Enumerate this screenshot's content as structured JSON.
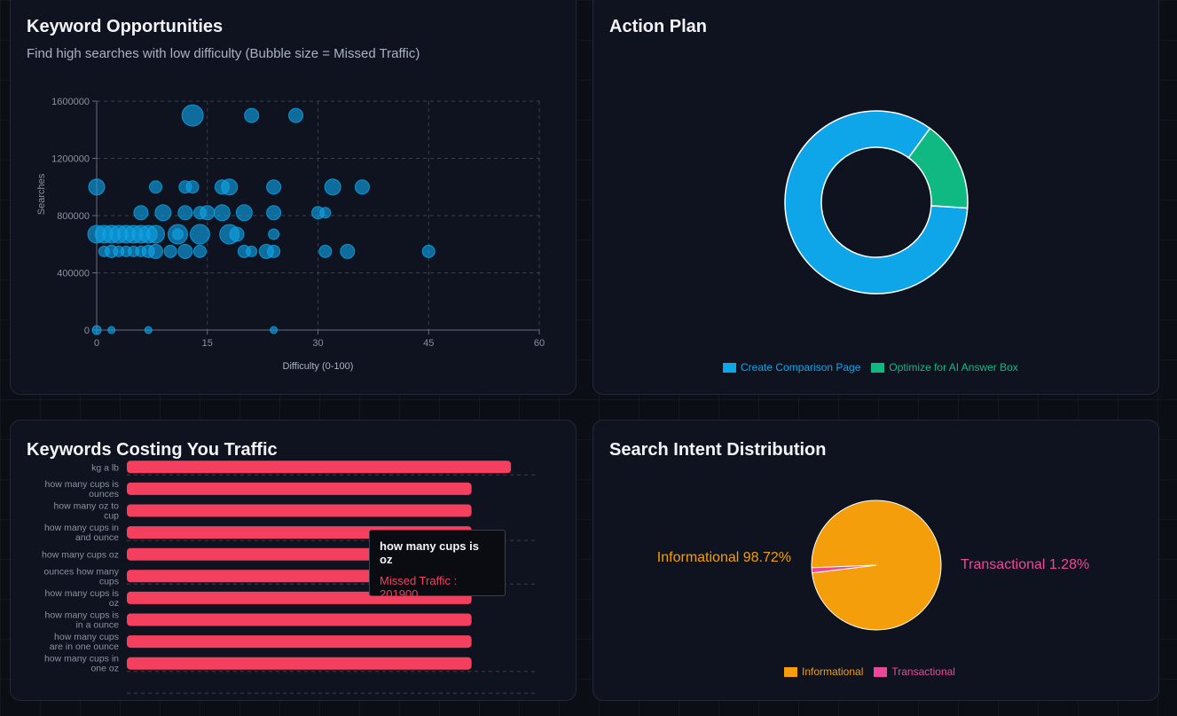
{
  "cards": {
    "opportunities": {
      "title": "Keyword Opportunities",
      "subtitle": "Find high searches with low difficulty (Bubble size = Missed Traffic)"
    },
    "action_plan": {
      "title": "Action Plan"
    },
    "costing": {
      "title": "Keywords Costing You Traffic"
    },
    "intent": {
      "title": "Search Intent Distribution"
    }
  },
  "colors": {
    "bubble": "#0ea5e9",
    "comparison": "#0ea5e9",
    "ai_answer": "#10b981",
    "bar": "#f43f5e",
    "informational": "#f59e0b",
    "transactional": "#ec4899"
  },
  "tooltip": {
    "title": "how many cups is oz",
    "label": "Missed Traffic : 201900"
  },
  "chart_data": [
    {
      "type": "scatter",
      "title": "Keyword Opportunities",
      "subtitle": "Find high searches with low difficulty (Bubble size = Missed Traffic)",
      "xlabel": "Difficulty (0-100)",
      "ylabel": "Searches",
      "xlim": [
        0,
        60
      ],
      "ylim": [
        0,
        1600000
      ],
      "x_ticks": [
        "0",
        "15",
        "30",
        "45",
        "60"
      ],
      "y_ticks": [
        "0",
        "400000",
        "800000",
        "1200000",
        "1600000"
      ],
      "grid": true,
      "points": [
        {
          "x": 13,
          "y": 1500000,
          "r": 12
        },
        {
          "x": 21,
          "y": 1500000,
          "r": 8
        },
        {
          "x": 27,
          "y": 1500000,
          "r": 8
        },
        {
          "x": 0,
          "y": 1000000,
          "r": 9
        },
        {
          "x": 8,
          "y": 1000000,
          "r": 7
        },
        {
          "x": 12,
          "y": 1000000,
          "r": 7
        },
        {
          "x": 13,
          "y": 1000000,
          "r": 7
        },
        {
          "x": 17,
          "y": 1000000,
          "r": 8
        },
        {
          "x": 18,
          "y": 1000000,
          "r": 9
        },
        {
          "x": 24,
          "y": 1000000,
          "r": 8
        },
        {
          "x": 32,
          "y": 1000000,
          "r": 9
        },
        {
          "x": 36,
          "y": 1000000,
          "r": 8
        },
        {
          "x": 6,
          "y": 820000,
          "r": 8
        },
        {
          "x": 9,
          "y": 820000,
          "r": 9
        },
        {
          "x": 12,
          "y": 820000,
          "r": 8
        },
        {
          "x": 14,
          "y": 820000,
          "r": 7
        },
        {
          "x": 15,
          "y": 820000,
          "r": 8
        },
        {
          "x": 17,
          "y": 820000,
          "r": 9
        },
        {
          "x": 20,
          "y": 820000,
          "r": 9
        },
        {
          "x": 24,
          "y": 820000,
          "r": 8
        },
        {
          "x": 30,
          "y": 820000,
          "r": 7
        },
        {
          "x": 31,
          "y": 820000,
          "r": 6
        },
        {
          "x": 0,
          "y": 670000,
          "r": 10
        },
        {
          "x": 1,
          "y": 670000,
          "r": 10
        },
        {
          "x": 2,
          "y": 670000,
          "r": 10
        },
        {
          "x": 3,
          "y": 670000,
          "r": 10
        },
        {
          "x": 4,
          "y": 670000,
          "r": 10
        },
        {
          "x": 5,
          "y": 670000,
          "r": 10
        },
        {
          "x": 6,
          "y": 670000,
          "r": 10
        },
        {
          "x": 7,
          "y": 670000,
          "r": 10
        },
        {
          "x": 8,
          "y": 670000,
          "r": 10
        },
        {
          "x": 11,
          "y": 670000,
          "r": 11
        },
        {
          "x": 11,
          "y": 670000,
          "r": 6
        },
        {
          "x": 14,
          "y": 670000,
          "r": 11
        },
        {
          "x": 18,
          "y": 670000,
          "r": 11
        },
        {
          "x": 19,
          "y": 670000,
          "r": 8
        },
        {
          "x": 24,
          "y": 670000,
          "r": 6
        },
        {
          "x": 1,
          "y": 550000,
          "r": 6
        },
        {
          "x": 2,
          "y": 550000,
          "r": 7
        },
        {
          "x": 3,
          "y": 550000,
          "r": 6
        },
        {
          "x": 4,
          "y": 550000,
          "r": 6
        },
        {
          "x": 5,
          "y": 550000,
          "r": 6
        },
        {
          "x": 6,
          "y": 550000,
          "r": 6
        },
        {
          "x": 7,
          "y": 550000,
          "r": 7
        },
        {
          "x": 8,
          "y": 550000,
          "r": 8
        },
        {
          "x": 10,
          "y": 550000,
          "r": 7
        },
        {
          "x": 12,
          "y": 550000,
          "r": 8
        },
        {
          "x": 14,
          "y": 550000,
          "r": 7
        },
        {
          "x": 20,
          "y": 550000,
          "r": 7
        },
        {
          "x": 21,
          "y": 550000,
          "r": 6
        },
        {
          "x": 23,
          "y": 550000,
          "r": 8
        },
        {
          "x": 24,
          "y": 550000,
          "r": 7
        },
        {
          "x": 31,
          "y": 550000,
          "r": 7
        },
        {
          "x": 34,
          "y": 550000,
          "r": 8
        },
        {
          "x": 45,
          "y": 550000,
          "r": 7
        },
        {
          "x": 0,
          "y": 0,
          "r": 5
        },
        {
          "x": 2,
          "y": 0,
          "r": 4
        },
        {
          "x": 7,
          "y": 0,
          "r": 4
        },
        {
          "x": 24,
          "y": 0,
          "r": 4
        }
      ]
    },
    {
      "type": "pie",
      "title": "Action Plan",
      "donut": true,
      "legend": "bottom",
      "slices": [
        {
          "name": "Create Comparison Page",
          "value": 84,
          "color": "#0ea5e9"
        },
        {
          "name": "Optimize for AI Answer Box",
          "value": 16,
          "color": "#10b981"
        }
      ]
    },
    {
      "type": "bar",
      "orientation": "horizontal",
      "title": "Keywords Costing You Traffic",
      "xlim": [
        0,
        240000
      ],
      "categories": [
        "kg a lb",
        "how many cups is ounces",
        "how many oz to cup",
        "how many cups in and ounce",
        "how many cups oz",
        "ounces how many cups",
        "how many cups is oz",
        "how many cups is in a ounce",
        "how many cups are in one ounce",
        "how many cups in one oz"
      ],
      "label_lines": [
        [
          "kg a lb"
        ],
        [
          "how many cups is",
          "ounces"
        ],
        [
          "how many oz to",
          "cup"
        ],
        [
          "how many cups in",
          "and ounce"
        ],
        [
          "how many cups oz"
        ],
        [
          "ounces how many",
          "cups"
        ],
        [
          "how many cups is",
          "oz"
        ],
        [
          "how many cups is",
          "in a ounce"
        ],
        [
          "how many cups",
          "are in one ounce"
        ],
        [
          "how many cups in",
          "one oz"
        ]
      ],
      "values": [
        225000,
        201900,
        201900,
        201900,
        201900,
        201900,
        201900,
        201900,
        201900,
        201900
      ],
      "series": [
        {
          "values": [
            225000,
            201900,
            201900,
            201900,
            201900,
            201900,
            201900,
            201900,
            201900,
            201900
          ]
        }
      ]
    },
    {
      "type": "pie",
      "title": "Search Intent Distribution",
      "legend": "bottom",
      "slices": [
        {
          "name": "Informational",
          "value": 98.72,
          "label": "Informational 98.72%",
          "color": "#f59e0b"
        },
        {
          "name": "Transactional",
          "value": 1.28,
          "label": "Transactional 1.28%",
          "color": "#ec4899"
        }
      ]
    }
  ]
}
